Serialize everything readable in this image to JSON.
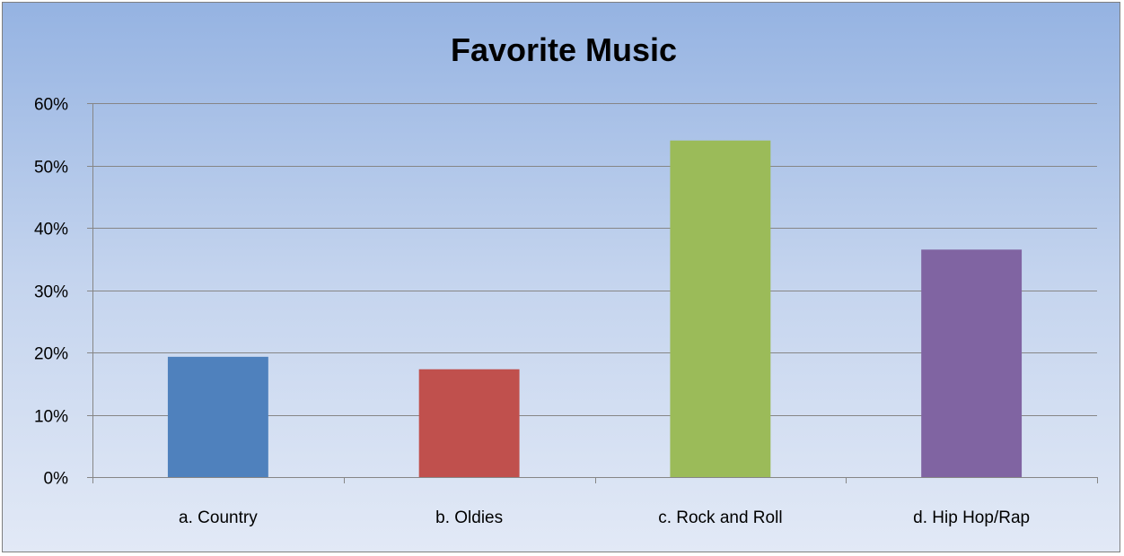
{
  "chart_data": {
    "type": "bar",
    "title": "Favorite Music",
    "xlabel": "",
    "ylabel": "",
    "categories": [
      "a. Country",
      "b. Oldies",
      "c. Rock and Roll",
      "d. Hip Hop/Rap"
    ],
    "values": [
      19.3,
      17.3,
      54.0,
      36.5
    ],
    "value_unit": "%",
    "colors": [
      "#4f81bd",
      "#c0504d",
      "#9bbb59",
      "#8064a2"
    ],
    "ylim": [
      0,
      60
    ],
    "yticks": [
      0,
      10,
      20,
      30,
      40,
      50,
      60
    ],
    "ytick_labels": [
      "0%",
      "10%",
      "20%",
      "30%",
      "40%",
      "50%",
      "60%"
    ],
    "grid": true,
    "legend": false
  }
}
